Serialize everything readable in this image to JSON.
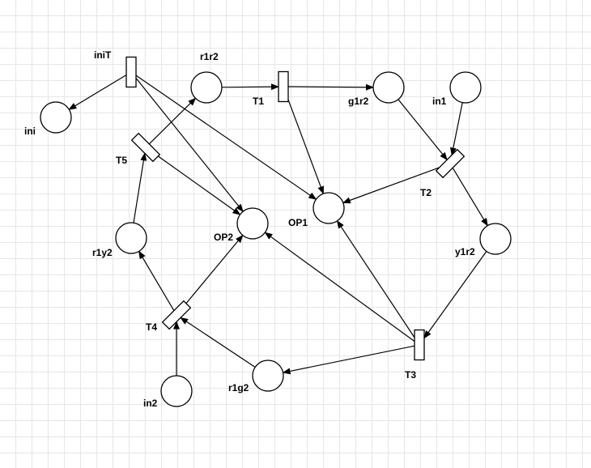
{
  "diagram": {
    "places": [
      {
        "id": "ini",
        "label": "ini"
      },
      {
        "id": "r1r2",
        "label": "r1r2"
      },
      {
        "id": "g1r2",
        "label": "g1r2"
      },
      {
        "id": "in1",
        "label": "in1"
      },
      {
        "id": "OP1",
        "label": "OP1"
      },
      {
        "id": "OP2",
        "label": "OP2"
      },
      {
        "id": "y1r2",
        "label": "y1r2"
      },
      {
        "id": "r1y2",
        "label": "r1y2"
      },
      {
        "id": "r1g2",
        "label": "r1g2"
      },
      {
        "id": "in2",
        "label": "in2"
      }
    ],
    "transitions": [
      {
        "id": "iniT",
        "label": "iniT"
      },
      {
        "id": "T1",
        "label": "T1"
      },
      {
        "id": "T2",
        "label": "T2"
      },
      {
        "id": "T3",
        "label": "T3"
      },
      {
        "id": "T4",
        "label": "T4"
      },
      {
        "id": "T5",
        "label": "T5"
      }
    ],
    "arcs": [
      {
        "from": "iniT",
        "to": "ini"
      },
      {
        "from": "iniT",
        "to": "OP1"
      },
      {
        "from": "iniT",
        "to": "OP2"
      },
      {
        "from": "r1r2",
        "to": "T1"
      },
      {
        "from": "T1",
        "to": "g1r2"
      },
      {
        "from": "T1",
        "to": "OP1"
      },
      {
        "from": "g1r2",
        "to": "T2"
      },
      {
        "from": "in1",
        "to": "T2"
      },
      {
        "from": "T2",
        "to": "OP1"
      },
      {
        "from": "T2",
        "to": "y1r2"
      },
      {
        "from": "y1r2",
        "to": "T3"
      },
      {
        "from": "T3",
        "to": "OP1"
      },
      {
        "from": "T3",
        "to": "OP2"
      },
      {
        "from": "T3",
        "to": "r1g2"
      },
      {
        "from": "r1g2",
        "to": "T4"
      },
      {
        "from": "in2",
        "to": "T4"
      },
      {
        "from": "T4",
        "to": "OP2"
      },
      {
        "from": "T4",
        "to": "r1y2"
      },
      {
        "from": "r1y2",
        "to": "T5"
      },
      {
        "from": "T5",
        "to": "r1r2"
      },
      {
        "from": "T5",
        "to": "OP2"
      }
    ]
  }
}
